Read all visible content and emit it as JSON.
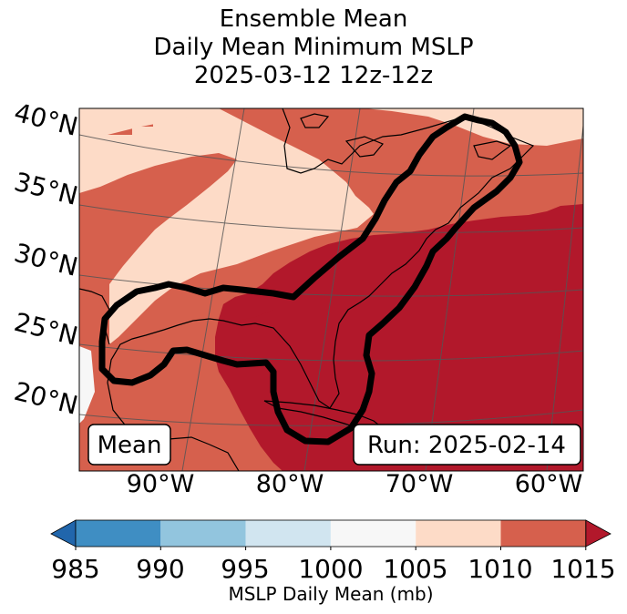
{
  "title": {
    "line1": "Ensemble Mean",
    "line2": "Daily Mean Minimum MSLP",
    "line3": "2025-03-12 12z-12z"
  },
  "map": {
    "lat_labels": [
      "40°N",
      "35°N",
      "30°N",
      "25°N",
      "20°N"
    ],
    "lon_labels": [
      "90°W",
      "80°W",
      "70°W",
      "60°W"
    ],
    "mean_box": "Mean",
    "run_box": "Run: 2025-02-14"
  },
  "colorbar": {
    "ticks": [
      "985",
      "990",
      "995",
      "1000",
      "1005",
      "1010",
      "1015"
    ],
    "label": "MSLP Daily Mean (mb)",
    "bins": [
      {
        "range": "985-990",
        "color": "#3f8ec3"
      },
      {
        "range": "990-995",
        "color": "#92c5de"
      },
      {
        "range": "995-1000",
        "color": "#d1e5f0"
      },
      {
        "range": "1000-1005",
        "color": "#f7f7f7"
      },
      {
        "range": "1005-1010",
        "color": "#fddbc7"
      },
      {
        "range": "1010-1015",
        "color": "#d6604d"
      }
    ],
    "under_color": "#2166ac",
    "over_color": "#b2182b"
  },
  "colors": {
    "light": "#fddbc7",
    "medium": "#d6604d",
    "dark": "#b2182b",
    "white": "#f7f7f7"
  }
}
